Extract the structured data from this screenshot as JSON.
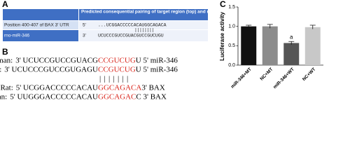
{
  "panel_a": {
    "label": "A",
    "header": "Predicted consequential pairing of target region (top) and miRNA (bottom)",
    "rows": [
      {
        "name": "Position 400-407 of BAX 3' UTR",
        "end": "5'",
        "sequence": "...UCGGACCCCCACAUGGCAGACA"
      },
      {
        "name": "rno-miR-346",
        "end": "3'",
        "sequence": "UCUCCCGUCCGUACGUCCGUCUGU"
      }
    ],
    "pairing": "||||||||"
  },
  "panel_b": {
    "label": "B",
    "rows": [
      {
        "species": "Human:",
        "segments": [
          "3' UCUCCGUCCGUACG",
          "CCGUCUG",
          "U 5' miR-346"
        ]
      },
      {
        "species": "Rat:",
        "segments": [
          "3' UCUCCCGUCCGUGAGU",
          "CCGUCUG",
          "U 5' miR-346"
        ]
      },
      {
        "species": "Rat:",
        "segments": [
          "5' UCGGACCCCCACAU",
          "GGCAGACA",
          " 3' BAX"
        ]
      },
      {
        "species": "Human:",
        "segments": [
          "5' UUGGGACCCCCACAU",
          "GGCAGAC",
          "C 3' BAX"
        ]
      }
    ],
    "pairing": "|||||||"
  },
  "chart_data": {
    "type": "bar",
    "panel_label": "C",
    "y_label": "Luciferase activity",
    "categories": [
      "miR-346+MT",
      "NC+MT",
      "miR-346+WT",
      "NC+WT"
    ],
    "values": [
      1.0,
      1.0,
      0.57,
      0.98
    ],
    "errors": [
      0.03,
      0.05,
      0.04,
      0.05
    ],
    "colors": [
      "#111111",
      "#8c8c8c",
      "#555555",
      "#c8c8c8"
    ],
    "annotations": [
      null,
      null,
      "a",
      null
    ],
    "ylim": [
      0,
      1.5
    ],
    "yticks": [
      {
        "value": 0,
        "label": "0.0"
      },
      0.5,
      {
        "value": 1,
        "label": "1.0"
      },
      1.5
    ]
  }
}
